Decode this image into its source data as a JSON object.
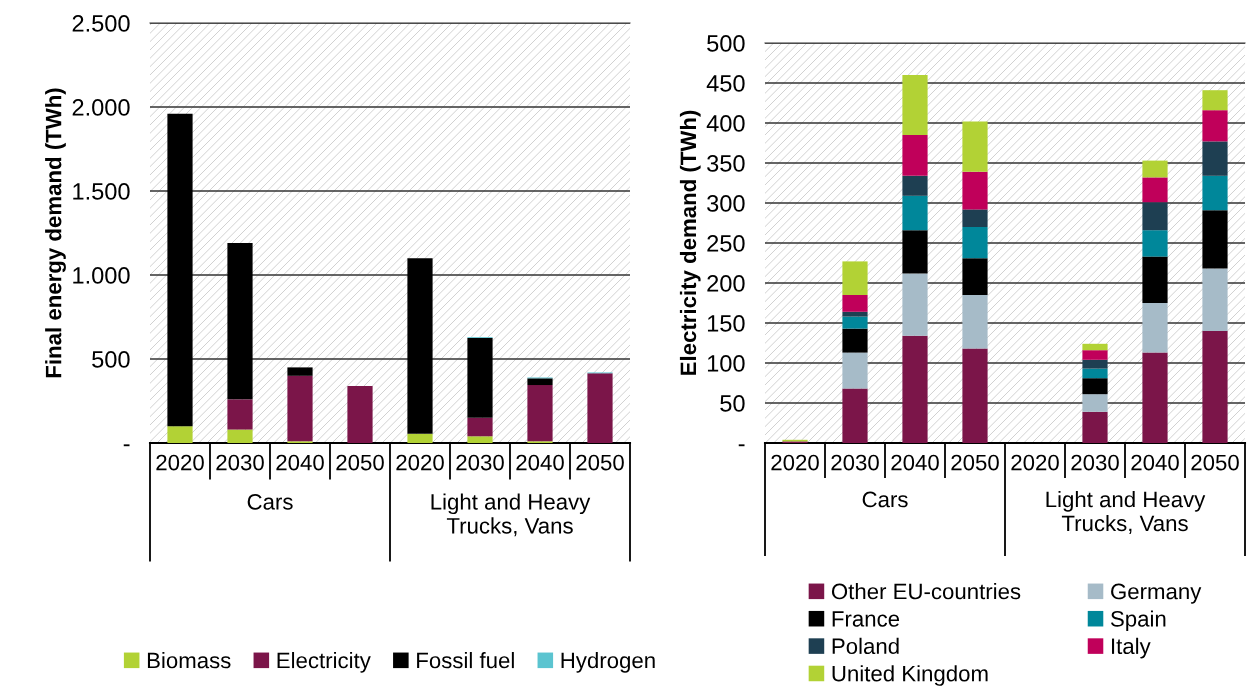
{
  "chart_data": [
    {
      "type": "bar",
      "stacked": true,
      "ylabel": "Final energy demand (TWh)",
      "categories": [
        "2020",
        "2030",
        "2040",
        "2050",
        "2020",
        "2030",
        "2040",
        "2050"
      ],
      "annotations": [
        "Cars",
        "Light and Heavy\nTrucks, Vans"
      ],
      "ylim": [
        0,
        2500
      ],
      "yticks": [
        {
          "value": 0,
          "label": "-"
        },
        500,
        {
          "value": 1000,
          "label": "1.000"
        },
        {
          "value": 1500,
          "label": "1.500"
        },
        {
          "value": 2000,
          "label": "2.000"
        },
        {
          "value": 2500,
          "label": "2.500"
        }
      ],
      "grid": "y",
      "legend": "bottom",
      "series": [
        {
          "name": "Biomass",
          "color": "#b2d235",
          "values": [
            100,
            80,
            10,
            0,
            55,
            40,
            10,
            0
          ]
        },
        {
          "name": "Electricity",
          "color": "#7b1549",
          "values": [
            0,
            180,
            390,
            340,
            0,
            110,
            335,
            415
          ]
        },
        {
          "name": "Fossil fuel",
          "color": "#000000",
          "values": [
            1860,
            930,
            50,
            0,
            1045,
            475,
            40,
            0
          ]
        },
        {
          "name": "Hydrogen",
          "color": "#5bc4d0",
          "values": [
            0,
            0,
            0,
            0,
            0,
            5,
            5,
            5
          ]
        }
      ]
    },
    {
      "type": "bar",
      "stacked": true,
      "ylabel": "Electricity demand (TWh)",
      "categories": [
        "2020",
        "2030",
        "2040",
        "2050",
        "2020",
        "2030",
        "2040",
        "2050"
      ],
      "annotations": [
        "Cars",
        "Light and Heavy\nTrucks, Vans"
      ],
      "ylim": [
        0,
        500
      ],
      "yticks": [
        {
          "value": 0,
          "label": "-"
        },
        50,
        100,
        150,
        200,
        250,
        300,
        350,
        400,
        450,
        500
      ],
      "grid": "y",
      "legend": "bottom",
      "series": [
        {
          "name": "Other EU-countries",
          "color": "#7b1549",
          "values": [
            2,
            68,
            134,
            118,
            0,
            39,
            113,
            140
          ]
        },
        {
          "name": "Germany",
          "color": "#a6bbc8",
          "values": [
            0,
            45,
            78,
            67,
            0,
            22,
            62,
            78
          ]
        },
        {
          "name": "France",
          "color": "#000000",
          "values": [
            0,
            30,
            54,
            46,
            0,
            20,
            58,
            73
          ]
        },
        {
          "name": "Spain",
          "color": "#00879a",
          "values": [
            0,
            15,
            43,
            39,
            0,
            12,
            33,
            43
          ]
        },
        {
          "name": "Poland",
          "color": "#1e3f52",
          "values": [
            0,
            6,
            25,
            22,
            0,
            11,
            35,
            43
          ]
        },
        {
          "name": "Italy",
          "color": "#c0005a",
          "values": [
            0,
            21,
            51,
            47,
            0,
            12,
            31,
            39
          ]
        },
        {
          "name": "United Kingdom",
          "color": "#b2d235",
          "values": [
            2,
            42,
            75,
            63,
            0,
            8,
            21,
            25
          ]
        }
      ]
    }
  ]
}
